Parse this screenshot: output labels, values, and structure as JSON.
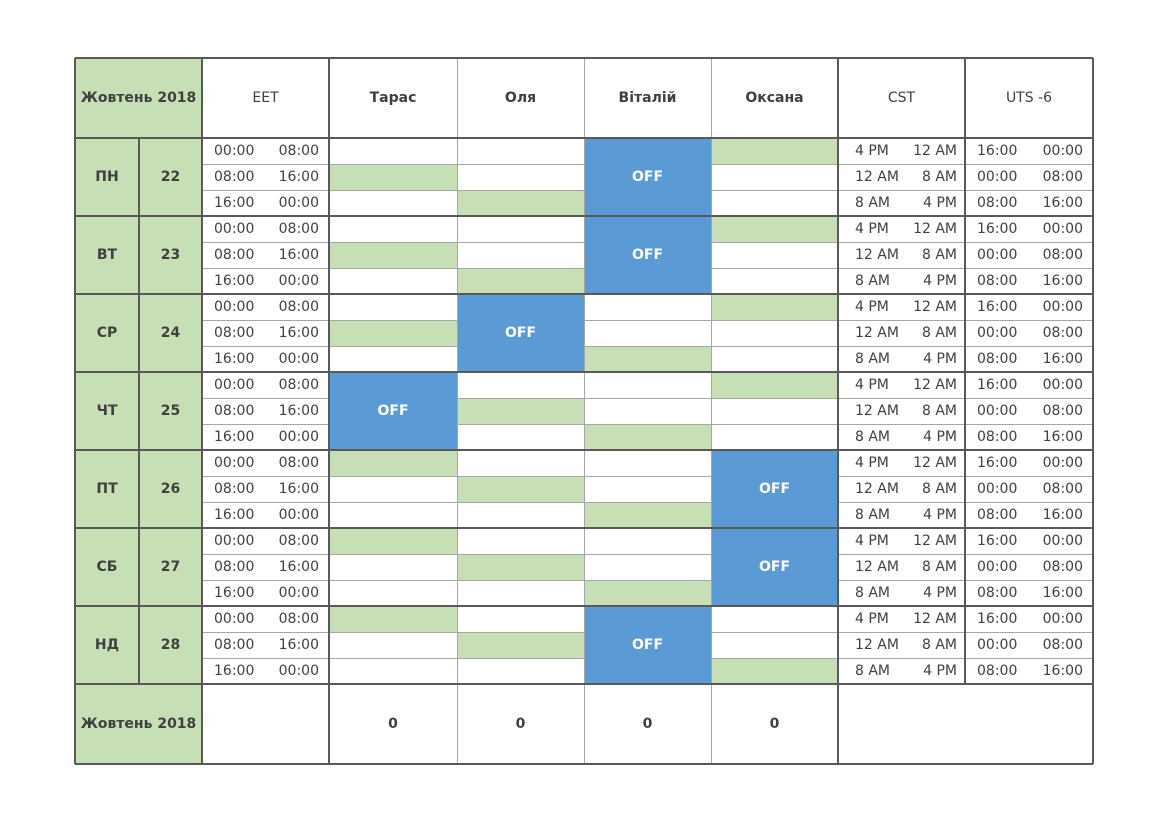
{
  "header": {
    "corner_label": "Жовтень 2018",
    "columns": [
      "EET",
      "Тарас",
      "Оля",
      "Віталій",
      "Оксана",
      "CST",
      "UTS -6"
    ]
  },
  "off_label": "OFF",
  "colors": {
    "green": "#c6dfb4",
    "blue": "#5b9bd5",
    "border": "#595959"
  },
  "shifts": {
    "eet": [
      [
        "00:00",
        "08:00"
      ],
      [
        "08:00",
        "16:00"
      ],
      [
        "16:00",
        "00:00"
      ]
    ],
    "cst": [
      [
        "4 PM",
        "12 AM"
      ],
      [
        "12 AM",
        "8 AM"
      ],
      [
        "8 AM",
        "4 PM"
      ]
    ],
    "uts": [
      [
        "16:00",
        "00:00"
      ],
      [
        "00:00",
        "08:00"
      ],
      [
        "08:00",
        "16:00"
      ]
    ]
  },
  "days": [
    {
      "day": "ПН",
      "date": "22",
      "off": 3,
      "assign": [
        1,
        2,
        null,
        0
      ]
    },
    {
      "day": "ВТ",
      "date": "23",
      "off": 3,
      "assign": [
        1,
        2,
        null,
        0
      ]
    },
    {
      "day": "СР",
      "date": "24",
      "off": 2,
      "assign": [
        1,
        null,
        2,
        0
      ]
    },
    {
      "day": "ЧТ",
      "date": "25",
      "off": 1,
      "assign": [
        null,
        1,
        2,
        0
      ]
    },
    {
      "day": "ПТ",
      "date": "26",
      "off": 4,
      "assign": [
        0,
        1,
        2,
        null
      ]
    },
    {
      "day": "СБ",
      "date": "27",
      "off": 4,
      "assign": [
        0,
        1,
        2,
        null
      ]
    },
    {
      "day": "НД",
      "date": "28",
      "off": 3,
      "assign": [
        0,
        1,
        null,
        2
      ]
    }
  ],
  "footer": {
    "label": "Жовтень 2018",
    "totals": [
      "0",
      "0",
      "0",
      "0"
    ]
  }
}
